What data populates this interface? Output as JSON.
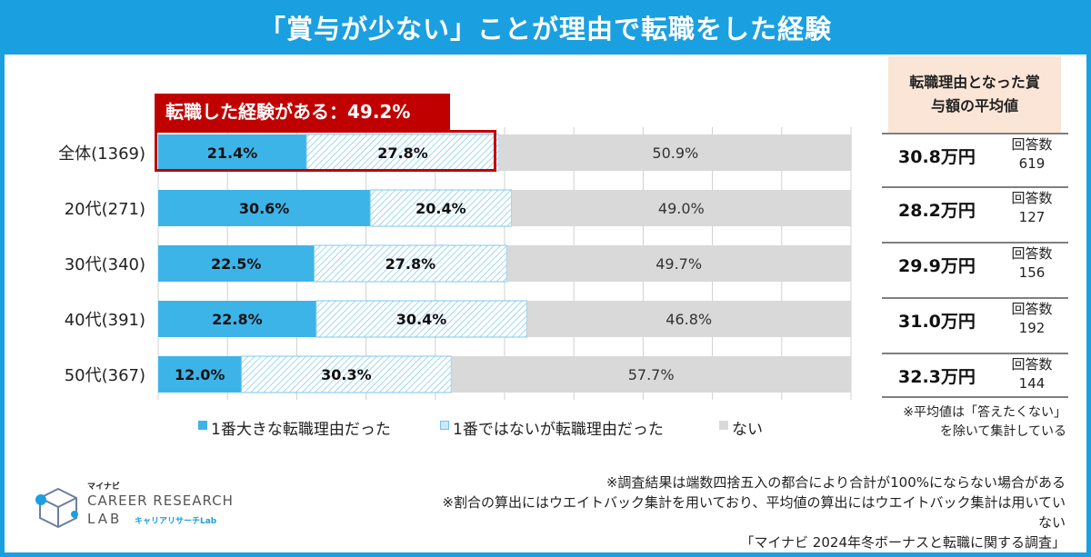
{
  "title": "「賞与が少ない」ことが理由で転職をした経験",
  "highlight": "転職した経験がある：49.2%",
  "chart_data": {
    "type": "bar",
    "orientation": "horizontal",
    "stacked": "percent",
    "categories": [
      "全体(1369)",
      "20代(271)",
      "30代(340)",
      "40代(391)",
      "50代(367)"
    ],
    "series": [
      {
        "name": "1番大きな転職理由だった",
        "values": [
          21.4,
          30.6,
          22.5,
          22.8,
          12.0
        ],
        "labels": [
          "21.4%",
          "30.6%",
          "22.5%",
          "22.8%",
          "12.0%"
        ],
        "color": "#3db4e8"
      },
      {
        "name": "1番ではないが転職理由だった",
        "values": [
          27.8,
          20.4,
          27.8,
          30.4,
          30.3
        ],
        "labels": [
          "27.8%",
          "20.4%",
          "27.8%",
          "30.4%",
          "30.3%"
        ],
        "color": "#cde9f7"
      },
      {
        "name": "ない",
        "values": [
          50.9,
          49.0,
          49.7,
          46.8,
          57.7
        ],
        "labels": [
          "50.9%",
          "49.0%",
          "49.7%",
          "46.8%",
          "57.7%"
        ],
        "color": "#d9d9d9"
      }
    ],
    "xlim": [
      0,
      100
    ],
    "grid": true,
    "legend": "bottom"
  },
  "avg_panel": {
    "header_line1": "転職理由となった賞",
    "header_line2": "与額の平均値",
    "rows": [
      {
        "value": "30.8万円",
        "label": "回答数",
        "count": "619"
      },
      {
        "value": "28.2万円",
        "label": "回答数",
        "count": "127"
      },
      {
        "value": "29.9万円",
        "label": "回答数",
        "count": "156"
      },
      {
        "value": "31.0万円",
        "label": "回答数",
        "count": "192"
      },
      {
        "value": "32.3万円",
        "label": "回答数",
        "count": "144"
      }
    ],
    "note_line1": "※平均値は「答えたくない」",
    "note_line2": "を除いて集計している"
  },
  "footer": {
    "line1": "※調査結果は端数四捨五入の都合により合計が100%にならない場合がある",
    "line2": "※割合の算出にはウエイトバック集計を用いており、平均値の算出にはウエイトバック集計は用いていない",
    "line3": "「マイナビ 2024年冬ボーナスと転職に関する調査」"
  },
  "logo": {
    "small": "マイナビ",
    "line1": "CAREER RESEARCH",
    "line2": "LAB",
    "jp": "キャリアリサーチLab"
  },
  "colors": {
    "accent": "#1aa0e0",
    "highlight": "#c00000",
    "panel": "#fbe5d6"
  }
}
